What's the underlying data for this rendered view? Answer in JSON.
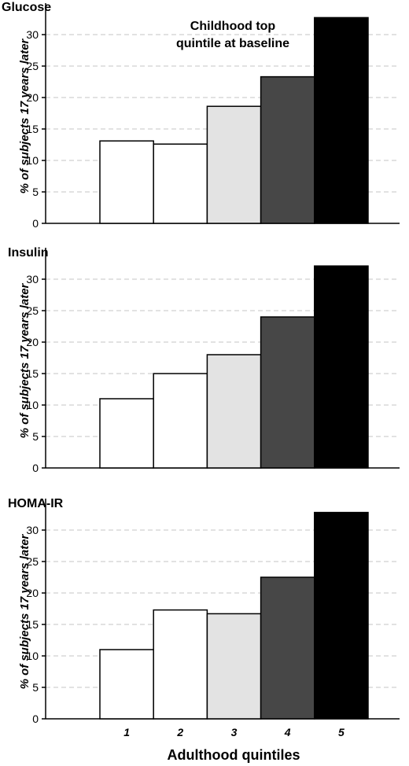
{
  "chart_data": {
    "type": "bar",
    "xlabel": "Adulthood quintiles",
    "ylabel": "% of subjects 17 years later",
    "categories": [
      "1",
      "2",
      "3",
      "4",
      "5"
    ],
    "bar_colors": [
      "#ffffff",
      "#ffffff",
      "#e3e3e3",
      "#474747",
      "#000000"
    ],
    "ylim": [
      0,
      35
    ],
    "yticks": [
      0,
      5,
      10,
      15,
      20,
      25,
      30
    ],
    "grid": "horizontal dashed",
    "panels": [
      {
        "title": "Glucose",
        "annotation": [
          "Childhood top",
          "quintile at baseline"
        ],
        "values": [
          13.1,
          12.6,
          18.6,
          23.3,
          32.7
        ]
      },
      {
        "title": "Insulin",
        "annotation": [],
        "values": [
          11.0,
          15.0,
          18.0,
          24.0,
          32.1
        ]
      },
      {
        "title": "HOMA-IR",
        "annotation": [],
        "values": [
          11.0,
          17.3,
          16.7,
          22.5,
          32.8
        ]
      }
    ]
  }
}
